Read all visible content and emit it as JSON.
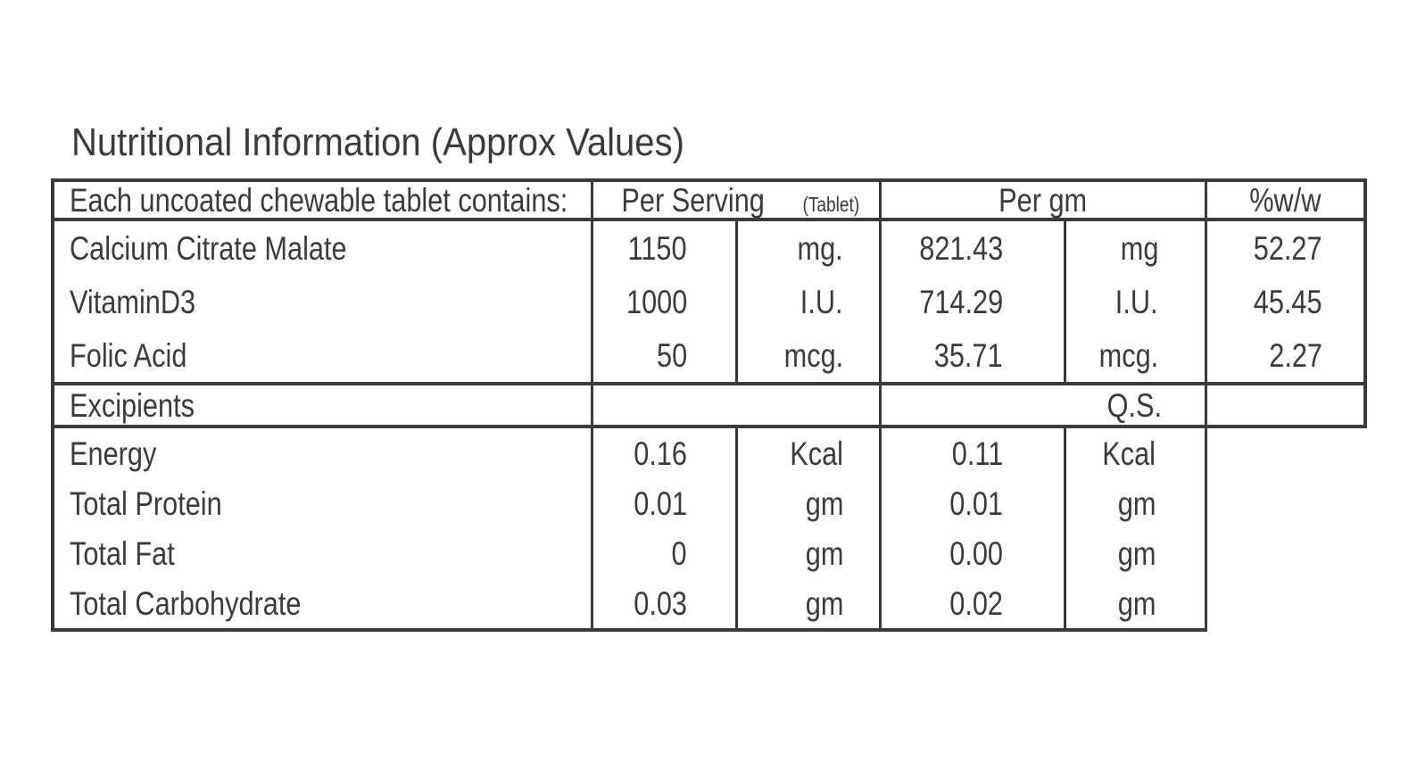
{
  "title": "Nutritional Information (Approx Values)",
  "table": {
    "header": {
      "col_label": "Each uncoated chewable tablet contains:",
      "per_serving": "Per Serving",
      "per_serving_note": "(Tablet)",
      "per_gm": "Per gm",
      "pct_ww": "%w/w"
    },
    "nutrients": [
      {
        "name": "Calcium Citrate Malate",
        "serving_value": "1150",
        "serving_unit": "mg.",
        "gm_value": "821.43",
        "gm_unit": "mg",
        "pct": "52.27"
      },
      {
        "name": "VitaminD3",
        "serving_value": "1000",
        "serving_unit": "I.U.",
        "gm_value": "714.29",
        "gm_unit": "I.U.",
        "pct": "45.45"
      },
      {
        "name": "Folic Acid",
        "serving_value": "50",
        "serving_unit": "mcg.",
        "gm_value": "35.71",
        "gm_unit": "mcg.",
        "pct": "2.27"
      }
    ],
    "excipients": {
      "name": "Excipients",
      "per_gm": "Q.S."
    },
    "energy_rows": [
      {
        "name": "Energy",
        "serving_value": "0.16",
        "serving_unit": "Kcal",
        "gm_value": "0.11",
        "gm_unit": "Kcal"
      },
      {
        "name": "Total Protein",
        "serving_value": "0.01",
        "serving_unit": "gm",
        "gm_value": "0.01",
        "gm_unit": "gm"
      },
      {
        "name": "Total Fat",
        "serving_value": "0",
        "serving_unit": "gm",
        "gm_value": "0.00",
        "gm_unit": "gm"
      },
      {
        "name": "Total Carbohydrate",
        "serving_value": "0.03",
        "serving_unit": "gm",
        "gm_value": "0.02",
        "gm_unit": "gm"
      }
    ]
  }
}
